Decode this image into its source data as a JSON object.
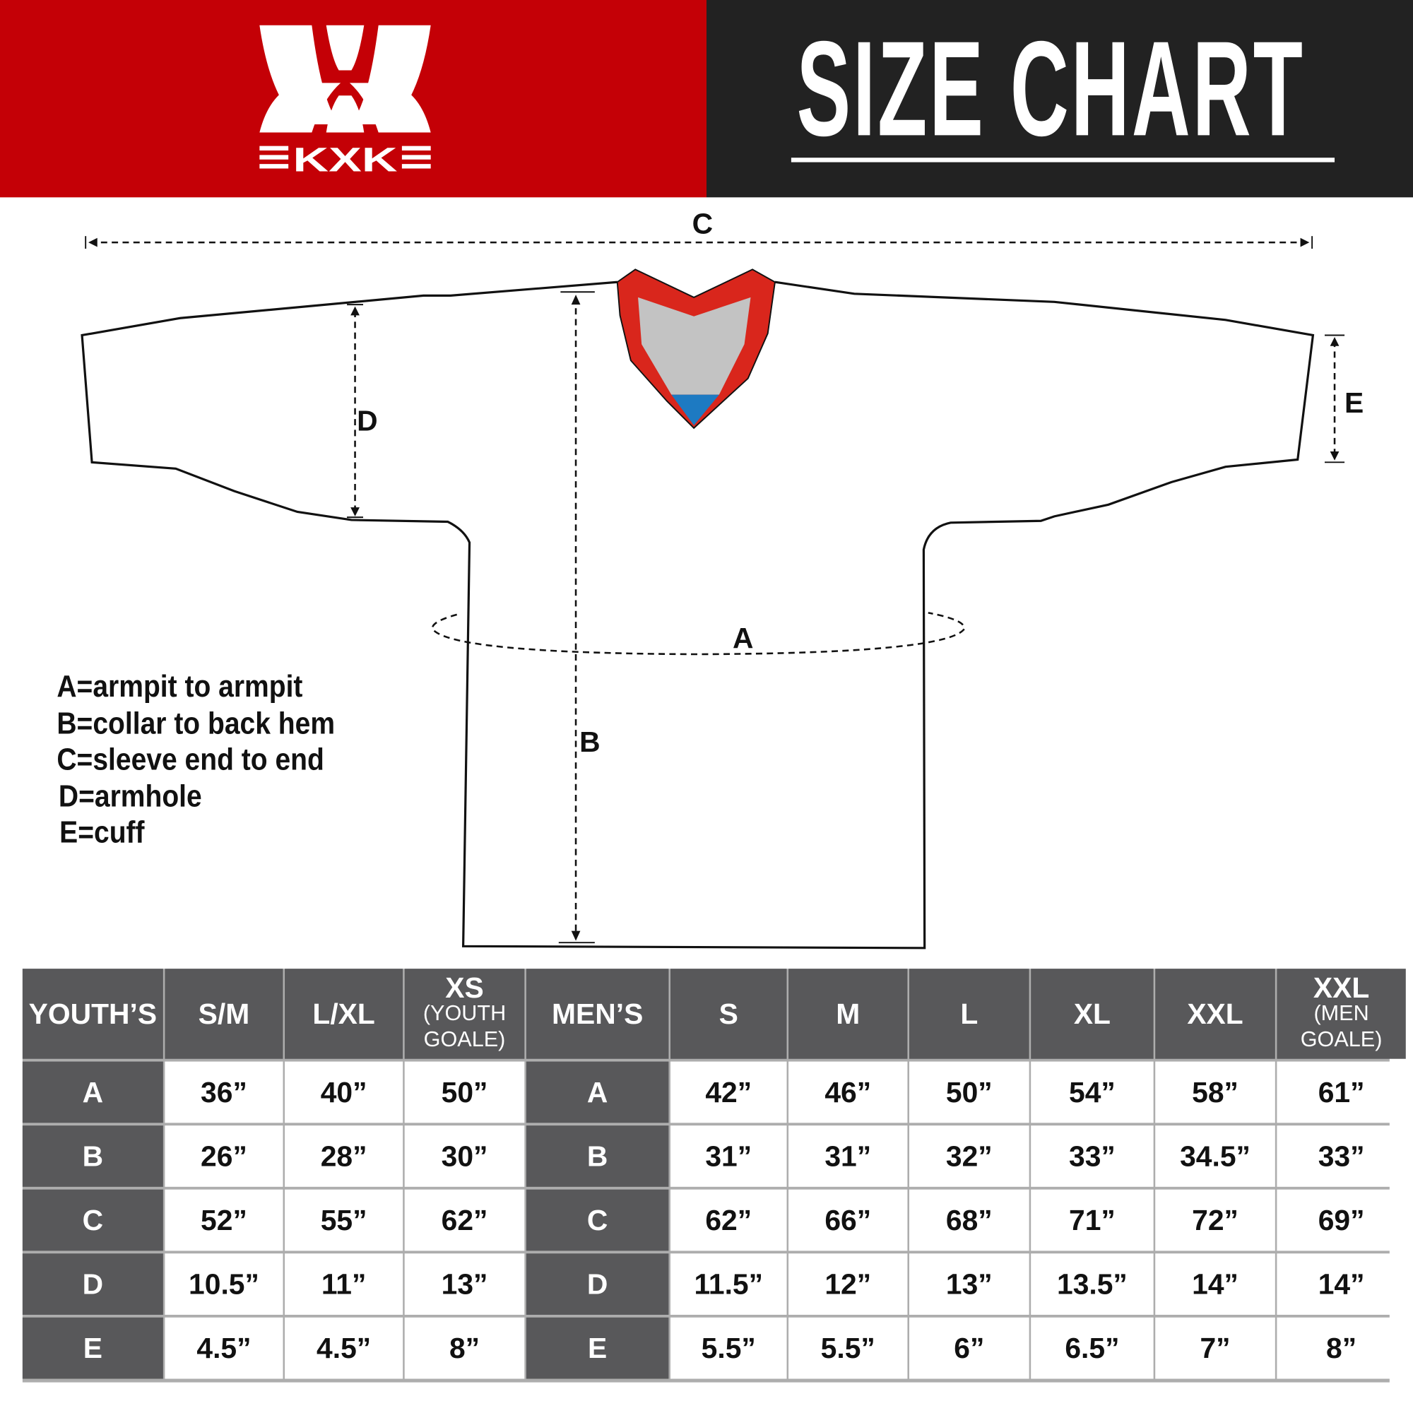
{
  "brand": {
    "logo_text": "KXK",
    "colors": {
      "red": "#c40006",
      "dark": "#222222",
      "table_header": "#58585a"
    }
  },
  "header": {
    "title": "SIZE CHART"
  },
  "diagram": {
    "labels": {
      "a": "A",
      "b": "B",
      "c": "C",
      "d": "D",
      "e": "E"
    }
  },
  "legend": [
    "A=armpit to armpit",
    "B=collar to back hem",
    "C=sleeve end to end",
    "D=armhole",
    "E=cuff"
  ],
  "table": {
    "headers": [
      {
        "main": "YOUTH’S",
        "sub": ""
      },
      {
        "main": "S/M",
        "sub": ""
      },
      {
        "main": "L/XL",
        "sub": ""
      },
      {
        "main": "XS",
        "sub": "(YOUTH GOALE)"
      },
      {
        "main": "MEN’S",
        "sub": ""
      },
      {
        "main": "S",
        "sub": ""
      },
      {
        "main": "M",
        "sub": ""
      },
      {
        "main": "L",
        "sub": ""
      },
      {
        "main": "XL",
        "sub": ""
      },
      {
        "main": "XXL",
        "sub": ""
      },
      {
        "main": "XXL",
        "sub": "(MEN GOALE)"
      }
    ],
    "rows": [
      [
        "A",
        "36”",
        "40”",
        "50”",
        "A",
        "42”",
        "46”",
        "50”",
        "54”",
        "58”",
        "61”"
      ],
      [
        "B",
        "26”",
        "28”",
        "30”",
        "B",
        "31”",
        "31”",
        "32”",
        "33”",
        "34.5”",
        "33”"
      ],
      [
        "C",
        "52”",
        "55”",
        "62”",
        "C",
        "62”",
        "66”",
        "68”",
        "71”",
        "72”",
        "69”"
      ],
      [
        "D",
        "10.5”",
        "11”",
        "13”",
        "D",
        "11.5”",
        "12”",
        "13”",
        "13.5”",
        "14”",
        "14”"
      ],
      [
        "E",
        "4.5”",
        "4.5”",
        "8”",
        "E",
        "5.5”",
        "5.5”",
        "6”",
        "6.5”",
        "7”",
        "8”"
      ]
    ]
  }
}
